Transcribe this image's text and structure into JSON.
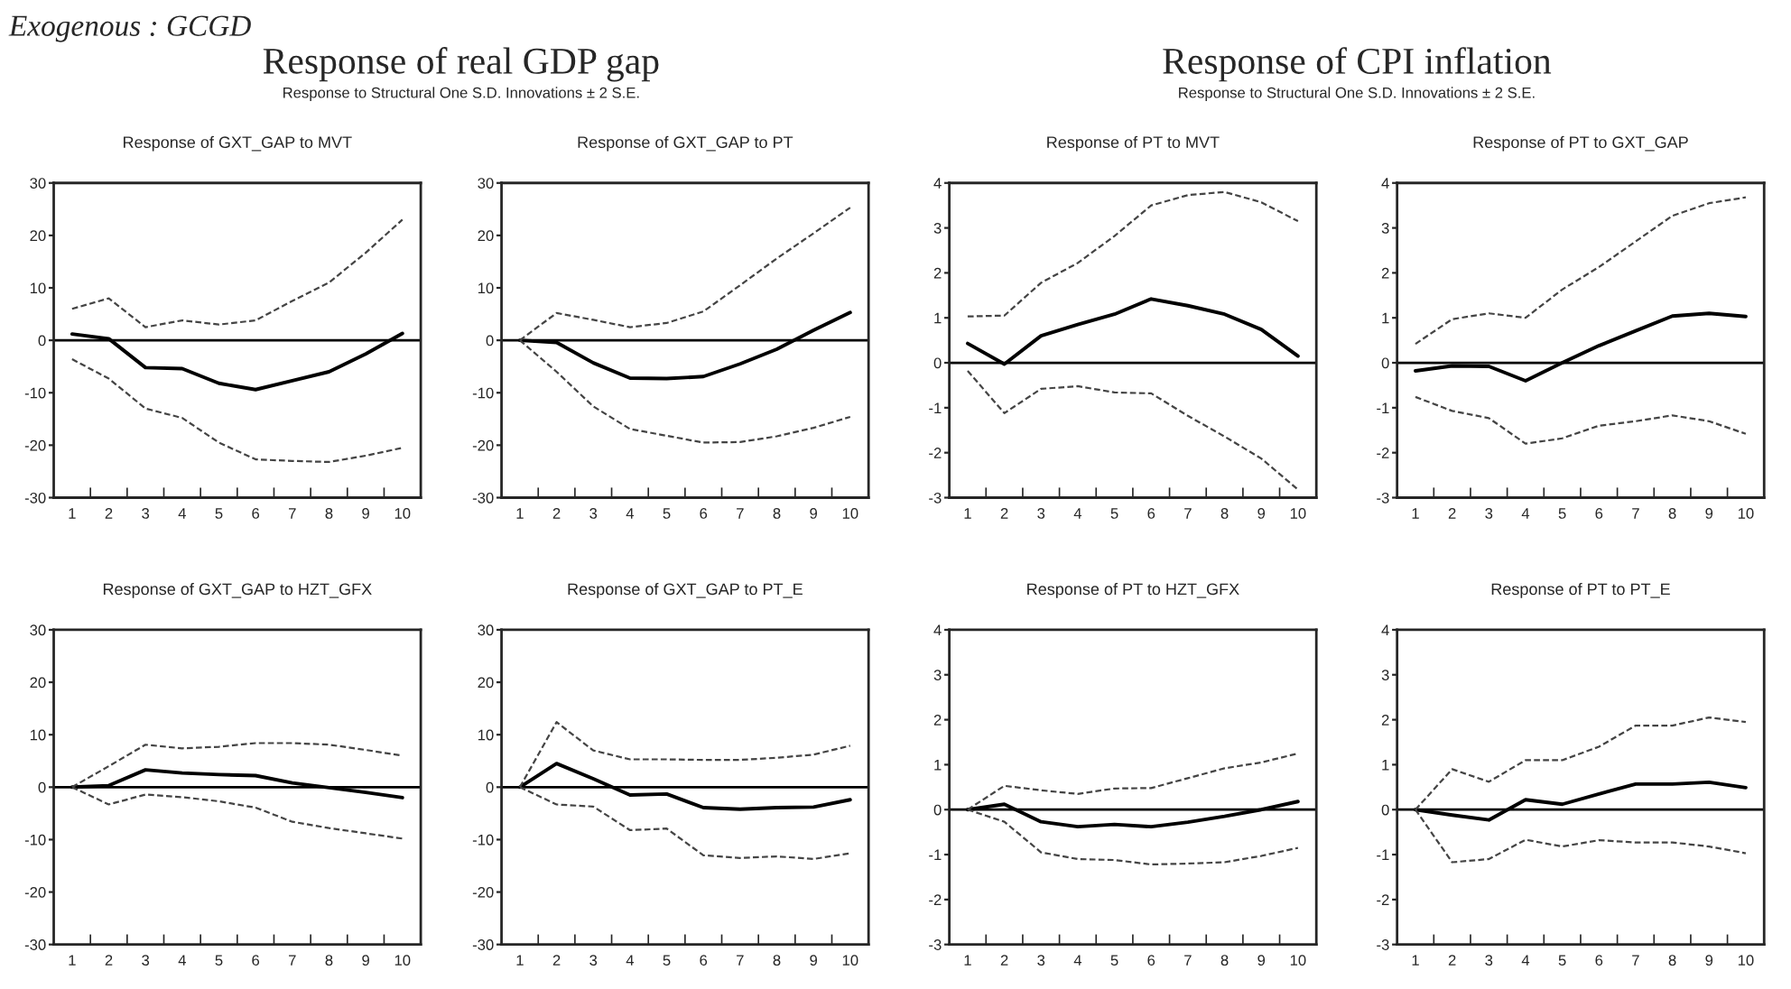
{
  "chart_data": [
    {
      "type": "line",
      "title": "Response of GXT_GAP to MVT",
      "annotations": [
        "Exogenous : GCGD",
        "Response of real GDP gap",
        "Response to Structural One S.D. Innovations ± 2 S.E."
      ],
      "categories": [
        "1",
        "2",
        "3",
        "4",
        "5",
        "6",
        "7",
        "8",
        "9",
        "10"
      ],
      "ylim": [
        -30,
        30
      ],
      "yticks": [
        -30,
        -20,
        -10,
        0,
        10,
        20,
        30
      ],
      "grid": false,
      "legend": false,
      "ref_lines": [
        {
          "axis": "y",
          "value": 0,
          "color": "#000000",
          "line_style": "solid"
        }
      ],
      "series": [
        {
          "color": "#000000",
          "line_style": "solid",
          "values": [
            1.2,
            0.3,
            -5.2,
            -5.4,
            -8.2,
            -9.4,
            -7.7,
            -6.0,
            -2.6,
            1.3
          ]
        },
        {
          "color": "#444444",
          "line_style": "dashed",
          "values": [
            6.0,
            8.0,
            2.5,
            3.8,
            3.0,
            3.8,
            7.5,
            11.0,
            16.7,
            23.0
          ]
        },
        {
          "color": "#444444",
          "line_style": "dashed",
          "values": [
            -3.6,
            -7.3,
            -13.0,
            -14.8,
            -19.5,
            -22.7,
            -23.0,
            -23.2,
            -22.0,
            -20.5
          ]
        }
      ]
    },
    {
      "type": "line",
      "title": "Response of GXT_GAP to PT",
      "categories": [
        "1",
        "2",
        "3",
        "4",
        "5",
        "6",
        "7",
        "8",
        "9",
        "10"
      ],
      "ylim": [
        -30,
        30
      ],
      "yticks": [
        -30,
        -20,
        -10,
        0,
        10,
        20,
        30
      ],
      "grid": false,
      "legend": false,
      "ref_lines": [
        {
          "axis": "y",
          "value": 0,
          "color": "#000000",
          "line_style": "solid"
        }
      ],
      "series": [
        {
          "color": "#000000",
          "line_style": "solid",
          "values": [
            0,
            -0.4,
            -4.3,
            -7.2,
            -7.3,
            -6.9,
            -4.5,
            -1.7,
            1.9,
            5.3
          ]
        },
        {
          "color": "#444444",
          "line_style": "dashed",
          "values": [
            0,
            5.2,
            3.9,
            2.5,
            3.3,
            5.5,
            10.5,
            15.6,
            20.4,
            25.3
          ]
        },
        {
          "color": "#444444",
          "line_style": "dashed",
          "values": [
            0,
            -6.0,
            -12.6,
            -16.9,
            -18.2,
            -19.5,
            -19.4,
            -18.3,
            -16.7,
            -14.6
          ]
        }
      ]
    },
    {
      "type": "line",
      "title": "Response of PT to MVT",
      "annotations": [
        "Response of CPI inflation",
        "Response to Structural One S.D. Innovations ± 2 S.E."
      ],
      "categories": [
        "1",
        "2",
        "3",
        "4",
        "5",
        "6",
        "7",
        "8",
        "9",
        "10"
      ],
      "ylim": [
        -3,
        4
      ],
      "yticks": [
        -3,
        -2,
        -1,
        0,
        1,
        2,
        3,
        4
      ],
      "grid": false,
      "legend": false,
      "ref_lines": [
        {
          "axis": "y",
          "value": 0,
          "color": "#000000",
          "line_style": "solid"
        }
      ],
      "series": [
        {
          "color": "#000000",
          "line_style": "solid",
          "values": [
            0.43,
            -0.03,
            0.6,
            0.85,
            1.08,
            1.42,
            1.27,
            1.08,
            0.74,
            0.15
          ]
        },
        {
          "color": "#444444",
          "line_style": "dashed",
          "values": [
            1.03,
            1.05,
            1.78,
            2.22,
            2.82,
            3.5,
            3.73,
            3.8,
            3.57,
            3.15
          ]
        },
        {
          "color": "#444444",
          "line_style": "dashed",
          "values": [
            -0.18,
            -1.12,
            -0.58,
            -0.52,
            -0.66,
            -0.68,
            -1.18,
            -1.64,
            -2.13,
            -2.82
          ]
        }
      ]
    },
    {
      "type": "line",
      "title": "Response of PT to GXT_GAP",
      "categories": [
        "1",
        "2",
        "3",
        "4",
        "5",
        "6",
        "7",
        "8",
        "9",
        "10"
      ],
      "ylim": [
        -3,
        4
      ],
      "yticks": [
        -3,
        -2,
        -1,
        0,
        1,
        2,
        3,
        4
      ],
      "grid": false,
      "legend": false,
      "ref_lines": [
        {
          "axis": "y",
          "value": 0,
          "color": "#000000",
          "line_style": "solid"
        }
      ],
      "series": [
        {
          "color": "#000000",
          "line_style": "solid",
          "values": [
            -0.18,
            -0.07,
            -0.08,
            -0.4,
            0.0,
            0.38,
            0.71,
            1.04,
            1.1,
            1.03
          ]
        },
        {
          "color": "#444444",
          "line_style": "dashed",
          "values": [
            0.42,
            0.97,
            1.1,
            1.0,
            1.63,
            2.13,
            2.7,
            3.27,
            3.55,
            3.68
          ]
        },
        {
          "color": "#444444",
          "line_style": "dashed",
          "values": [
            -0.76,
            -1.07,
            -1.23,
            -1.8,
            -1.68,
            -1.4,
            -1.3,
            -1.17,
            -1.3,
            -1.58
          ]
        }
      ]
    },
    {
      "type": "line",
      "title": "Response of GXT_GAP to HZT_GFX",
      "categories": [
        "1",
        "2",
        "3",
        "4",
        "5",
        "6",
        "7",
        "8",
        "9",
        "10"
      ],
      "ylim": [
        -30,
        30
      ],
      "yticks": [
        -30,
        -20,
        -10,
        0,
        10,
        20,
        30
      ],
      "grid": false,
      "legend": false,
      "ref_lines": [
        {
          "axis": "y",
          "value": 0,
          "color": "#000000",
          "line_style": "solid"
        }
      ],
      "series": [
        {
          "color": "#000000",
          "line_style": "solid",
          "values": [
            0,
            0.3,
            3.3,
            2.7,
            2.4,
            2.2,
            0.8,
            -0.1,
            -1.0,
            -2.0
          ]
        },
        {
          "color": "#444444",
          "line_style": "dashed",
          "values": [
            0,
            4.0,
            8.1,
            7.4,
            7.7,
            8.4,
            8.4,
            8.1,
            7.1,
            6.0
          ]
        },
        {
          "color": "#444444",
          "line_style": "dashed",
          "values": [
            0,
            -3.3,
            -1.4,
            -1.9,
            -2.7,
            -3.9,
            -6.6,
            -7.8,
            -8.8,
            -9.8
          ]
        }
      ]
    },
    {
      "type": "line",
      "title": "Response of GXT_GAP to PT_E",
      "categories": [
        "1",
        "2",
        "3",
        "4",
        "5",
        "6",
        "7",
        "8",
        "9",
        "10"
      ],
      "ylim": [
        -30,
        30
      ],
      "yticks": [
        -30,
        -20,
        -10,
        0,
        10,
        20,
        30
      ],
      "grid": false,
      "legend": false,
      "ref_lines": [
        {
          "axis": "y",
          "value": 0,
          "color": "#000000",
          "line_style": "solid"
        }
      ],
      "series": [
        {
          "color": "#000000",
          "line_style": "solid",
          "values": [
            0,
            4.5,
            1.6,
            -1.5,
            -1.3,
            -3.9,
            -4.2,
            -3.9,
            -3.8,
            -2.4
          ]
        },
        {
          "color": "#444444",
          "line_style": "dashed",
          "values": [
            0,
            12.4,
            7.0,
            5.3,
            5.3,
            5.2,
            5.2,
            5.6,
            6.2,
            7.9
          ]
        },
        {
          "color": "#444444",
          "line_style": "dashed",
          "values": [
            0,
            -3.3,
            -3.7,
            -8.2,
            -7.9,
            -13.0,
            -13.5,
            -13.2,
            -13.7,
            -12.6
          ]
        }
      ]
    },
    {
      "type": "line",
      "title": "Response of PT to HZT_GFX",
      "categories": [
        "1",
        "2",
        "3",
        "4",
        "5",
        "6",
        "7",
        "8",
        "9",
        "10"
      ],
      "ylim": [
        -3,
        4
      ],
      "yticks": [
        -3,
        -2,
        -1,
        0,
        1,
        2,
        3,
        4
      ],
      "grid": false,
      "legend": false,
      "ref_lines": [
        {
          "axis": "y",
          "value": 0,
          "color": "#000000",
          "line_style": "solid"
        }
      ],
      "series": [
        {
          "color": "#000000",
          "line_style": "solid",
          "values": [
            0,
            0.12,
            -0.27,
            -0.38,
            -0.33,
            -0.38,
            -0.28,
            -0.15,
            0.0,
            0.18
          ]
        },
        {
          "color": "#444444",
          "line_style": "dashed",
          "values": [
            0,
            0.53,
            0.43,
            0.35,
            0.47,
            0.48,
            0.7,
            0.92,
            1.05,
            1.25
          ]
        },
        {
          "color": "#444444",
          "line_style": "dashed",
          "values": [
            0,
            -0.27,
            -0.95,
            -1.1,
            -1.12,
            -1.22,
            -1.2,
            -1.17,
            -1.03,
            -0.85
          ]
        }
      ]
    },
    {
      "type": "line",
      "title": "Response of PT to PT_E",
      "categories": [
        "1",
        "2",
        "3",
        "4",
        "5",
        "6",
        "7",
        "8",
        "9",
        "10"
      ],
      "ylim": [
        -3,
        4
      ],
      "yticks": [
        -3,
        -2,
        -1,
        0,
        1,
        2,
        3,
        4
      ],
      "grid": false,
      "legend": false,
      "ref_lines": [
        {
          "axis": "y",
          "value": 0,
          "color": "#000000",
          "line_style": "solid"
        }
      ],
      "series": [
        {
          "color": "#000000",
          "line_style": "solid",
          "values": [
            0,
            -0.12,
            -0.23,
            0.22,
            0.12,
            0.35,
            0.57,
            0.57,
            0.61,
            0.49
          ]
        },
        {
          "color": "#444444",
          "line_style": "dashed",
          "values": [
            0,
            0.9,
            0.62,
            1.1,
            1.1,
            1.4,
            1.87,
            1.87,
            2.05,
            1.95
          ]
        },
        {
          "color": "#444444",
          "line_style": "dashed",
          "values": [
            0,
            -1.17,
            -1.1,
            -0.67,
            -0.82,
            -0.68,
            -0.73,
            -0.73,
            -0.82,
            -0.97
          ]
        }
      ]
    }
  ]
}
